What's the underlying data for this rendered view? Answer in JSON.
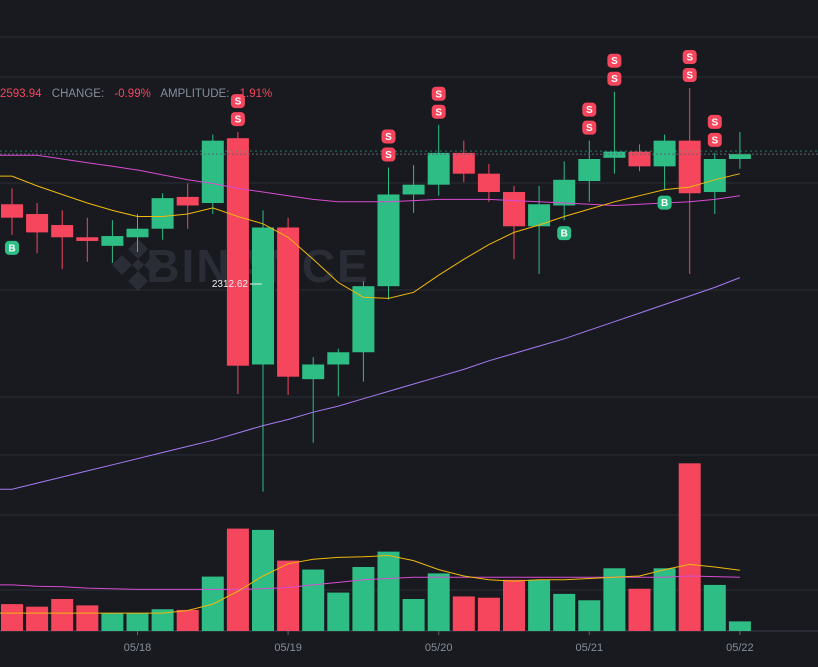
{
  "header": {
    "close_value": "2593.94",
    "change_label": "CHANGE:",
    "change_value": "-0.99%",
    "amplitude_label": "AMPLITUDE:",
    "amplitude_value": "1.91%"
  },
  "watermark": "BINANCE",
  "price_marker_label": "2312.62",
  "colors": {
    "background": "#181a20",
    "up": "#2ebd85",
    "down": "#f6465d",
    "ma_fast": "#f0b90b",
    "ma_mid": "#d94bd2",
    "ma_slow": "#a77bf3",
    "grid": "#2b2f36",
    "label_text": "#848e9c"
  },
  "chart_data": {
    "type": "candlestick",
    "x_tick_labels": [
      "05/18",
      "05/19",
      "05/20",
      "05/21",
      "05/22"
    ],
    "price_range": [
      2210,
      2730
    ],
    "candles": [
      {
        "o": 2563,
        "h": 2576,
        "l": 2538,
        "c": 2552
      },
      {
        "o": 2555,
        "h": 2564,
        "l": 2523,
        "c": 2540
      },
      {
        "o": 2546,
        "h": 2558,
        "l": 2510,
        "c": 2536
      },
      {
        "o": 2536,
        "h": 2552,
        "l": 2516,
        "c": 2533
      },
      {
        "o": 2529,
        "h": 2550,
        "l": 2515,
        "c": 2537
      },
      {
        "o": 2536,
        "h": 2555,
        "l": 2524,
        "c": 2543
      },
      {
        "o": 2543,
        "h": 2572,
        "l": 2534,
        "c": 2568
      },
      {
        "o": 2569,
        "h": 2580,
        "l": 2543,
        "c": 2562
      },
      {
        "o": 2564,
        "h": 2620,
        "l": 2555,
        "c": 2615
      },
      {
        "o": 2617,
        "h": 2622,
        "l": 2408,
        "c": 2431
      },
      {
        "o": 2432,
        "h": 2558,
        "l": 2328,
        "c": 2544
      },
      {
        "o": 2544,
        "h": 2552,
        "l": 2407,
        "c": 2422
      },
      {
        "o": 2420,
        "h": 2438,
        "l": 2368,
        "c": 2432
      },
      {
        "o": 2432,
        "h": 2445,
        "l": 2406,
        "c": 2442
      },
      {
        "o": 2442,
        "h": 2500,
        "l": 2418,
        "c": 2496
      },
      {
        "o": 2496,
        "h": 2593,
        "l": 2485,
        "c": 2571
      },
      {
        "o": 2571,
        "h": 2595,
        "l": 2556,
        "c": 2579
      },
      {
        "o": 2579,
        "h": 2628,
        "l": 2570,
        "c": 2605
      },
      {
        "o": 2605,
        "h": 2615,
        "l": 2581,
        "c": 2588
      },
      {
        "o": 2588,
        "h": 2596,
        "l": 2565,
        "c": 2573
      },
      {
        "o": 2573,
        "h": 2578,
        "l": 2518,
        "c": 2545
      },
      {
        "o": 2545,
        "h": 2578,
        "l": 2506,
        "c": 2563
      },
      {
        "o": 2562,
        "h": 2598,
        "l": 2550,
        "c": 2583
      },
      {
        "o": 2582,
        "h": 2615,
        "l": 2565,
        "c": 2600
      },
      {
        "o": 2601,
        "h": 2655,
        "l": 2588,
        "c": 2606
      },
      {
        "o": 2606,
        "h": 2612,
        "l": 2590,
        "c": 2594
      },
      {
        "o": 2594,
        "h": 2620,
        "l": 2575,
        "c": 2615
      },
      {
        "o": 2615,
        "h": 2658,
        "l": 2506,
        "c": 2572
      },
      {
        "o": 2573,
        "h": 2605,
        "l": 2555,
        "c": 2600
      },
      {
        "o": 2600,
        "h": 2622,
        "l": 2592,
        "c": 2604
      }
    ],
    "ma_fast": [
      2586,
      2578,
      2571,
      2564,
      2558,
      2553,
      2553,
      2555,
      2560,
      2553,
      2547,
      2536,
      2518,
      2499,
      2487,
      2486,
      2491,
      2505,
      2518,
      2530,
      2540,
      2546,
      2553,
      2559,
      2565,
      2570,
      2575,
      2577,
      2583,
      2588
    ],
    "ma_mid": [
      2603,
      2603,
      2600,
      2597,
      2594,
      2591,
      2587,
      2583,
      2580,
      2576,
      2573,
      2570,
      2567,
      2565,
      2565,
      2565,
      2566,
      2567,
      2567,
      2567,
      2566,
      2565,
      2564,
      2563,
      2562,
      2563,
      2564,
      2565,
      2567,
      2570
    ],
    "ma_slow": [
      2330,
      2335,
      2340,
      2345,
      2350,
      2355,
      2360,
      2365,
      2370,
      2376,
      2382,
      2387,
      2393,
      2398,
      2404,
      2410,
      2416,
      2422,
      2428,
      2435,
      2441,
      2447,
      2453,
      2460,
      2467,
      2474,
      2481,
      2488,
      2495,
      2503
    ],
    "volume": {
      "values": [
        42,
        38,
        50,
        40,
        28,
        28,
        34,
        33,
        85,
        160,
        158,
        110,
        96,
        60,
        100,
        124,
        50,
        90,
        54,
        52,
        80,
        80,
        58,
        48,
        98,
        66,
        98,
        262,
        72,
        15
      ],
      "ma_fast": [
        28,
        28,
        28,
        28,
        28,
        28,
        28,
        32,
        42,
        62,
        86,
        105,
        112,
        115,
        116,
        118,
        110,
        96,
        86,
        80,
        78,
        80,
        80,
        82,
        84,
        86,
        96,
        104,
        100,
        95
      ],
      "ma_slow": [
        72,
        70,
        69,
        67,
        66,
        65,
        65,
        65,
        65,
        65,
        66,
        68,
        72,
        76,
        80,
        82,
        84,
        84,
        84,
        84,
        84,
        84,
        84,
        84,
        84,
        84,
        84,
        86,
        85,
        84
      ]
    },
    "signals": [
      {
        "index": 0,
        "type": "B",
        "count": 1
      },
      {
        "index": 9,
        "type": "S",
        "count": 2
      },
      {
        "index": 15,
        "type": "S",
        "count": 2
      },
      {
        "index": 17,
        "type": "S",
        "count": 2
      },
      {
        "index": 22,
        "type": "B",
        "count": 1
      },
      {
        "index": 23,
        "type": "S",
        "count": 2
      },
      {
        "index": 24,
        "type": "S",
        "count": 2
      },
      {
        "index": 26,
        "type": "B",
        "count": 1
      },
      {
        "index": 27,
        "type": "S",
        "count": 2
      },
      {
        "index": 28,
        "type": "S",
        "count": 2
      }
    ],
    "current_price": 2604
  }
}
